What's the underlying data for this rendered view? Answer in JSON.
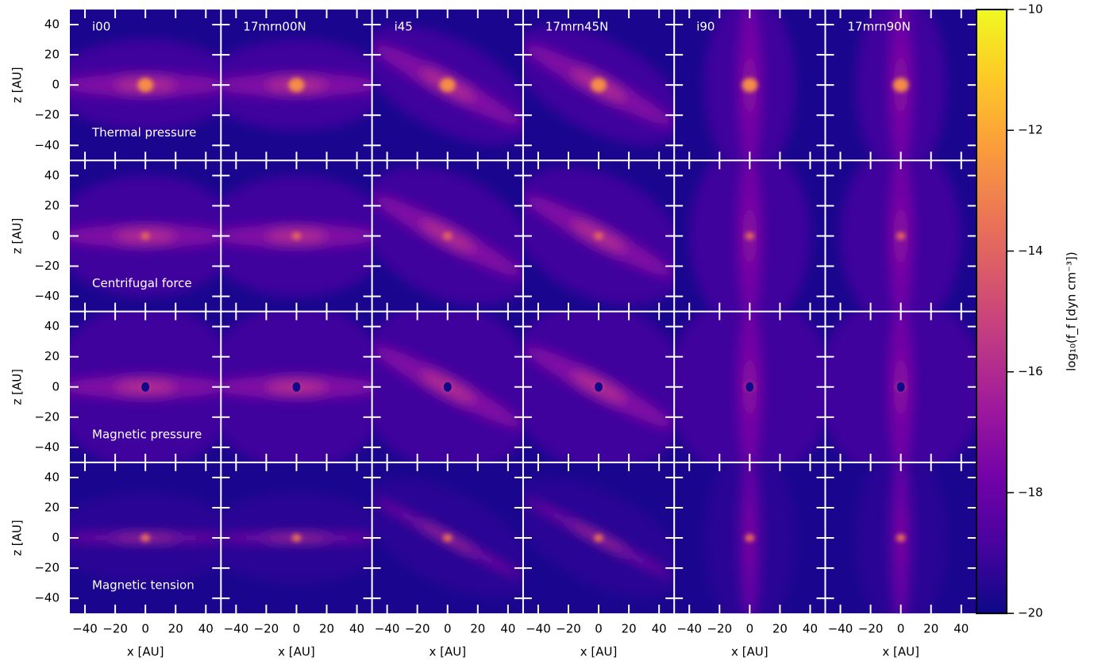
{
  "chart_data": {
    "type": "heatmap",
    "columns": [
      "i00",
      "17mrn00N",
      "i45",
      "17mrn45N",
      "i90",
      "17mrn90N"
    ],
    "rows": [
      "Thermal pressure",
      "Centrifugal force",
      "Magnetic pressure",
      "Magnetic tension"
    ],
    "xlabel": "x [AU]",
    "ylabel": "z [AU]",
    "xlim": [
      -50,
      50
    ],
    "ylim": [
      -50,
      50
    ],
    "xticks": [
      {
        "value": -40,
        "label": "−40"
      },
      {
        "value": -20,
        "label": "−20"
      },
      0,
      20,
      40
    ],
    "yticks": [
      {
        "value": -40,
        "label": "−40"
      },
      {
        "value": -20,
        "label": "−20"
      },
      0,
      20,
      40
    ],
    "colorbar": {
      "label": "log₁₀(f_f [dyn cm⁻³])",
      "lim": [
        -20,
        -10
      ],
      "colormap": "plasma",
      "ticks": [
        {
          "value": -20,
          "label": "−20"
        },
        {
          "value": -18,
          "label": "−18"
        },
        {
          "value": -16,
          "label": "−16"
        },
        {
          "value": -14,
          "label": "−14"
        },
        {
          "value": -12,
          "label": "−12"
        },
        {
          "value": -10,
          "label": "−10"
        }
      ]
    }
  }
}
